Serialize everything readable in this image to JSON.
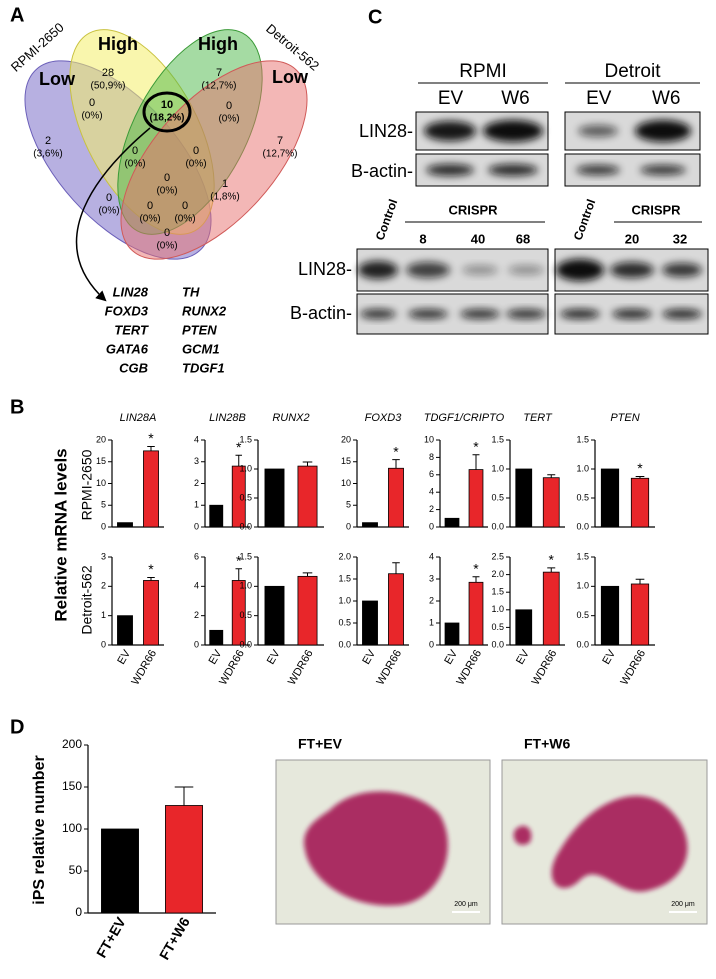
{
  "panel_labels": {
    "a": "A",
    "b": "B",
    "c": "C",
    "d": "D"
  },
  "venn": {
    "set_labels": {
      "rpmi": "RPMI-2650",
      "detroit": "Detroit-562",
      "low_left": "Low",
      "high_left": "High",
      "high_right": "High",
      "low_right": "Low"
    },
    "regions": [
      {
        "count": 28,
        "percent": "(50,9%)"
      },
      {
        "count": 7,
        "percent": "(12,7%)"
      },
      {
        "count": 2,
        "percent": "(3,6%)"
      },
      {
        "count": 0,
        "percent": "(0%)"
      },
      {
        "count": 10,
        "percent": "(18,2%)"
      },
      {
        "count": 0,
        "percent": "(0%)"
      },
      {
        "count": 7,
        "percent": "(12,7%)"
      },
      {
        "count": 0,
        "percent": "(0%)"
      },
      {
        "count": 0,
        "percent": "(0%)"
      },
      {
        "count": 0,
        "percent": "(0%)"
      },
      {
        "count": 0,
        "percent": "(0%)"
      },
      {
        "count": 1,
        "percent": "(1,8%)"
      },
      {
        "count": 0,
        "percent": "(0%)"
      },
      {
        "count": 0,
        "percent": "(0%)"
      },
      {
        "count": 0,
        "percent": "(0%)"
      }
    ],
    "genes": [
      [
        "LIN28",
        "TH"
      ],
      [
        "FOXD3",
        "RUNX2"
      ],
      [
        "TERT",
        "PTEN"
      ],
      [
        "GATA6",
        "GCM1"
      ],
      [
        "CGB",
        "TDGF1"
      ]
    ]
  },
  "blots": {
    "top": {
      "groups": [
        {
          "name": "RPMI",
          "lanes": [
            "EV",
            "W6"
          ]
        },
        {
          "name": "Detroit",
          "lanes": [
            "EV",
            "W6"
          ]
        }
      ],
      "rows": [
        "LIN28-",
        "B-actin-"
      ]
    },
    "bottom": {
      "groups": [
        {
          "control": "Control",
          "name": "CRISPR",
          "lanes": [
            "8",
            "40",
            "68"
          ]
        },
        {
          "control": "Control",
          "name": "CRISPR",
          "lanes": [
            "20",
            "32"
          ]
        }
      ],
      "rows": [
        "LIN28-",
        "B-actin-"
      ]
    }
  },
  "panel_b": {
    "ylabel": "Relative mRNA levels",
    "row_labels": [
      "RPMI-2650",
      "Detroit-562"
    ]
  },
  "chart_data": [
    {
      "type": "bar",
      "title": "LIN28A",
      "categories": [
        null,
        null
      ],
      "values": [
        1,
        17.5
      ],
      "errors": [
        null,
        1
      ],
      "annotations": [
        null,
        "*"
      ],
      "colors": [
        "#000000",
        "#e8262a"
      ],
      "ylim": [
        0,
        20
      ],
      "yticks": [
        0,
        5,
        10,
        15,
        20
      ]
    },
    {
      "type": "bar",
      "title": "LIN28B",
      "categories": [
        null,
        null
      ],
      "values": [
        1,
        2.8
      ],
      "errors": [
        null,
        0.5
      ],
      "annotations": [
        null,
        "*"
      ],
      "colors": [
        "#000000",
        "#e8262a"
      ],
      "ylim": [
        0,
        4
      ],
      "yticks": [
        0,
        1,
        2,
        3,
        4
      ]
    },
    {
      "type": "bar",
      "title": "RUNX2",
      "categories": [
        null,
        null
      ],
      "values": [
        1,
        1.05
      ],
      "errors": [
        null,
        0.07
      ],
      "colors": [
        "#000000",
        "#e8262a"
      ],
      "ylim": [
        0,
        1.5
      ],
      "yticks": [
        {
          "value": 0,
          "label": "0.0"
        },
        0.5,
        {
          "value": 1,
          "label": "1.0"
        },
        1.5
      ]
    },
    {
      "type": "bar",
      "title": "FOXD3",
      "categories": [
        null,
        null
      ],
      "values": [
        1,
        13.5
      ],
      "errors": [
        null,
        2
      ],
      "annotations": [
        null,
        "*"
      ],
      "colors": [
        "#000000",
        "#e8262a"
      ],
      "ylim": [
        0,
        20
      ],
      "yticks": [
        0,
        5,
        10,
        15,
        20
      ]
    },
    {
      "type": "bar",
      "title": "TDGF1/CRIPTO",
      "categories": [
        null,
        null
      ],
      "values": [
        1,
        6.6
      ],
      "errors": [
        null,
        1.7
      ],
      "annotations": [
        null,
        "*"
      ],
      "colors": [
        "#000000",
        "#e8262a"
      ],
      "ylim": [
        0,
        10
      ],
      "yticks": [
        0,
        2,
        4,
        6,
        8,
        10
      ]
    },
    {
      "type": "bar",
      "title": "TERT",
      "categories": [
        null,
        null
      ],
      "values": [
        1,
        0.85
      ],
      "errors": [
        null,
        0.05
      ],
      "colors": [
        "#000000",
        "#e8262a"
      ],
      "ylim": [
        0,
        1.5
      ],
      "yticks": [
        {
          "value": 0,
          "label": "0.0"
        },
        0.5,
        {
          "value": 1,
          "label": "1.0"
        },
        1.5
      ]
    },
    {
      "type": "bar",
      "title": "PTEN",
      "categories": [
        null,
        null
      ],
      "values": [
        1,
        0.84
      ],
      "errors": [
        null,
        0.03
      ],
      "annotations": [
        null,
        "*"
      ],
      "colors": [
        "#000000",
        "#e8262a"
      ],
      "ylim": [
        0,
        1.5
      ],
      "yticks": [
        {
          "value": 0,
          "label": "0.0"
        },
        0.5,
        {
          "value": 1,
          "label": "1.0"
        },
        1.5
      ]
    },
    {
      "type": "bar",
      "categories": [
        "EV",
        "WDR66"
      ],
      "values": [
        1,
        2.2
      ],
      "errors": [
        null,
        0.1
      ],
      "annotations": [
        null,
        "*"
      ],
      "colors": [
        "#000000",
        "#e8262a"
      ],
      "ylim": [
        0,
        3
      ],
      "yticks": [
        0,
        1,
        2,
        3
      ]
    },
    {
      "type": "bar",
      "categories": [
        "EV",
        "WDR66"
      ],
      "values": [
        1,
        4.4
      ],
      "errors": [
        null,
        0.8
      ],
      "annotations": [
        null,
        "*"
      ],
      "colors": [
        "#000000",
        "#e8262a"
      ],
      "ylim": [
        0,
        6
      ],
      "yticks": [
        0,
        2,
        4,
        6
      ]
    },
    {
      "type": "bar",
      "categories": [
        "EV",
        "WDR66"
      ],
      "values": [
        1,
        1.17
      ],
      "errors": [
        null,
        0.06
      ],
      "colors": [
        "#000000",
        "#e8262a"
      ],
      "ylim": [
        0,
        1.5
      ],
      "yticks": [
        {
          "value": 0,
          "label": "0.0"
        },
        0.5,
        {
          "value": 1,
          "label": "1.0"
        },
        1.5
      ]
    },
    {
      "type": "bar",
      "categories": [
        "EV",
        "WDR66"
      ],
      "values": [
        1,
        1.62
      ],
      "errors": [
        null,
        0.25
      ],
      "colors": [
        "#000000",
        "#e8262a"
      ],
      "ylim": [
        0,
        2
      ],
      "yticks": [
        {
          "value": 0,
          "label": "0.0"
        },
        0.5,
        {
          "value": 1,
          "label": "1.0"
        },
        1.5,
        {
          "value": 2,
          "label": "2.0"
        }
      ]
    },
    {
      "type": "bar",
      "categories": [
        "EV",
        "WDR66"
      ],
      "values": [
        1,
        2.85
      ],
      "errors": [
        null,
        0.25
      ],
      "annotations": [
        null,
        "*"
      ],
      "colors": [
        "#000000",
        "#e8262a"
      ],
      "ylim": [
        0,
        4
      ],
      "yticks": [
        0,
        1,
        2,
        3,
        4
      ]
    },
    {
      "type": "bar",
      "categories": [
        "EV",
        "WDR66"
      ],
      "values": [
        1,
        2.07
      ],
      "errors": [
        null,
        0.12
      ],
      "annotations": [
        null,
        "*"
      ],
      "colors": [
        "#000000",
        "#e8262a"
      ],
      "ylim": [
        0,
        2.5
      ],
      "yticks": [
        {
          "value": 0,
          "label": "0.0"
        },
        0.5,
        {
          "value": 1,
          "label": "1.0"
        },
        1.5,
        {
          "value": 2,
          "label": "2.0"
        },
        2.5
      ]
    },
    {
      "type": "bar",
      "categories": [
        "EV",
        "WDR66"
      ],
      "values": [
        1,
        1.04
      ],
      "errors": [
        null,
        0.08
      ],
      "colors": [
        "#000000",
        "#e8262a"
      ],
      "ylim": [
        0,
        1.5
      ],
      "yticks": [
        {
          "value": 0,
          "label": "0.0"
        },
        0.5,
        {
          "value": 1,
          "label": "1.0"
        },
        1.5
      ]
    },
    {
      "type": "bar",
      "ylabel": "iPS relative number",
      "categories": [
        "FT+EV",
        "FT+W6"
      ],
      "values": [
        100,
        128
      ],
      "errors": [
        null,
        22
      ],
      "colors": [
        "#000000",
        "#e8262a"
      ],
      "ylim": [
        0,
        200
      ],
      "yticks": [
        0,
        50,
        100,
        150,
        200
      ]
    }
  ],
  "panel_d": {
    "images": [
      {
        "label": "FT+EV",
        "scale": "200 μm"
      },
      {
        "label": "FT+W6",
        "scale": "200 μm"
      }
    ]
  }
}
